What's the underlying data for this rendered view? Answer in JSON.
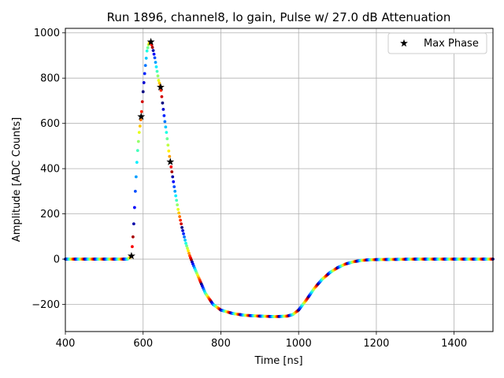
{
  "chart_data": {
    "type": "scatter",
    "title": "Run 1896, channel8, lo gain, Pulse w/ 27.0 dB Attenuation",
    "xlabel": "Time [ns]",
    "ylabel": "Amplitude [ADC Counts]",
    "xlim": [
      400,
      1500
    ],
    "ylim": [
      -320,
      1020
    ],
    "xticks": [
      400,
      600,
      800,
      1000,
      1200,
      1400
    ],
    "yticks": [
      -200,
      0,
      200,
      400,
      600,
      800,
      1000
    ],
    "grid": true,
    "legend": {
      "placement": "top-right",
      "entries": [
        "Max Phase"
      ]
    },
    "colormap": "jet",
    "series": [
      {
        "kind": "colored-dots",
        "x_range": [
          400,
          1500
        ],
        "x_step": 2,
        "color_cycle_ns": 25,
        "waveform": [
          [
            400,
            0
          ],
          [
            560,
            0
          ],
          [
            570,
            12
          ],
          [
            575,
            120
          ],
          [
            580,
            300
          ],
          [
            585,
            460
          ],
          [
            590,
            560
          ],
          [
            595,
            630
          ],
          [
            600,
            740
          ],
          [
            605,
            840
          ],
          [
            610,
            920
          ],
          [
            615,
            955
          ],
          [
            620,
            960
          ],
          [
            625,
            930
          ],
          [
            630,
            890
          ],
          [
            635,
            840
          ],
          [
            640,
            790
          ],
          [
            645,
            760
          ],
          [
            650,
            690
          ],
          [
            655,
            620
          ],
          [
            660,
            560
          ],
          [
            665,
            490
          ],
          [
            670,
            430
          ],
          [
            680,
            320
          ],
          [
            690,
            220
          ],
          [
            700,
            140
          ],
          [
            710,
            70
          ],
          [
            720,
            15
          ],
          [
            730,
            -30
          ],
          [
            740,
            -70
          ],
          [
            750,
            -110
          ],
          [
            760,
            -150
          ],
          [
            780,
            -200
          ],
          [
            800,
            -225
          ],
          [
            830,
            -240
          ],
          [
            860,
            -248
          ],
          [
            900,
            -252
          ],
          [
            940,
            -254
          ],
          [
            970,
            -252
          ],
          [
            985,
            -245
          ],
          [
            1000,
            -225
          ],
          [
            1020,
            -180
          ],
          [
            1040,
            -130
          ],
          [
            1060,
            -90
          ],
          [
            1080,
            -60
          ],
          [
            1100,
            -38
          ],
          [
            1120,
            -22
          ],
          [
            1140,
            -12
          ],
          [
            1160,
            -6
          ],
          [
            1180,
            -3
          ],
          [
            1200,
            -2
          ],
          [
            1300,
            0
          ],
          [
            1500,
            0
          ]
        ]
      },
      {
        "name": "Max Phase",
        "kind": "star-markers",
        "color": "#000000",
        "points": [
          [
            570,
            14
          ],
          [
            595,
            630
          ],
          [
            620,
            960
          ],
          [
            645,
            760
          ],
          [
            670,
            430
          ]
        ]
      }
    ]
  }
}
